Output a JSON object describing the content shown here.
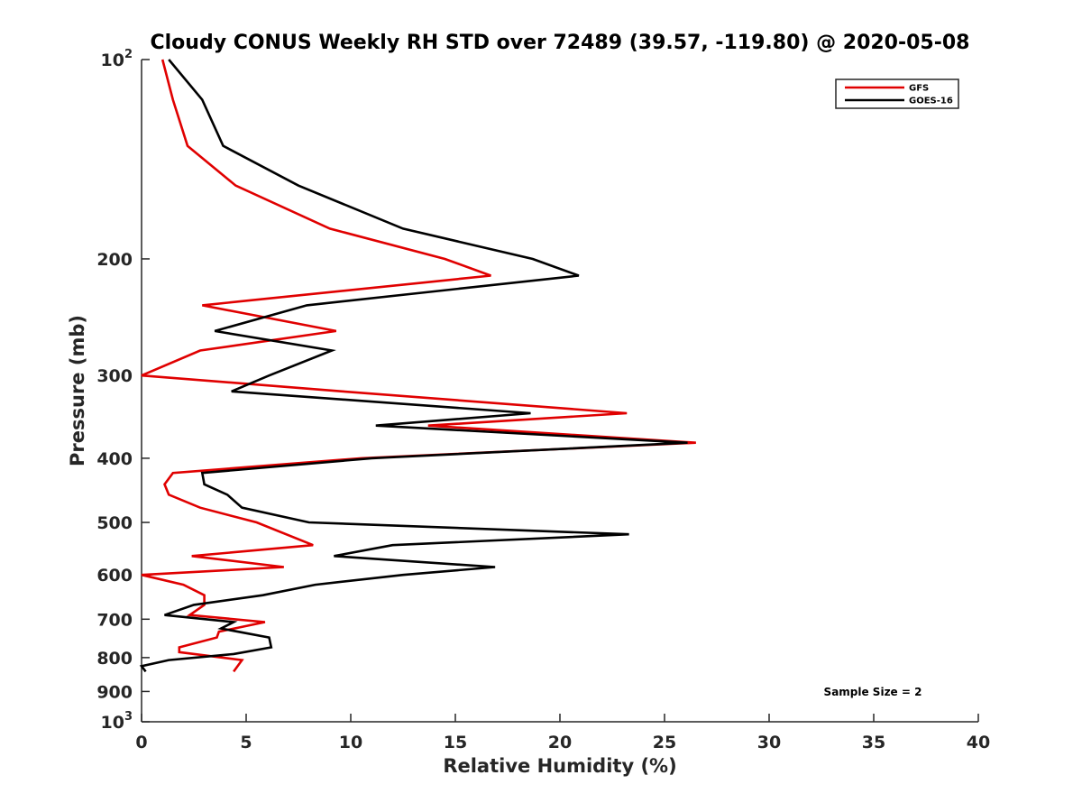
{
  "chart_data": {
    "type": "line",
    "title": "Cloudy CONUS Weekly RH STD over 72489 (39.57, -119.80) @ 2020-05-08",
    "xlabel": "Relative Humidity (%)",
    "ylabel": "Pressure (mb)",
    "xlim": [
      0,
      40
    ],
    "ylim": [
      1000,
      100
    ],
    "yscale": "log",
    "y_reversed": true,
    "x_ticks": [
      "0",
      "5",
      "10",
      "15",
      "20",
      "25",
      "30",
      "35",
      "40"
    ],
    "y_ticks": [
      {
        "value": 100,
        "base": "10",
        "exp": "2"
      },
      {
        "value": 200,
        "label": "200"
      },
      {
        "value": 300,
        "label": "300"
      },
      {
        "value": 400,
        "label": "400"
      },
      {
        "value": 500,
        "label": "500"
      },
      {
        "value": 600,
        "label": "600"
      },
      {
        "value": 700,
        "label": "700"
      },
      {
        "value": 800,
        "label": "800"
      },
      {
        "value": 900,
        "label": "900"
      },
      {
        "value": 1000,
        "base": "10",
        "exp": "3"
      }
    ],
    "legend_position": "top-right",
    "grid": false,
    "annotation": "Sample Size = 2",
    "series": [
      {
        "name": "GFS",
        "color": "#e00000",
        "points": [
          [
            1.0,
            100
          ],
          [
            1.5,
            115
          ],
          [
            2.2,
            135
          ],
          [
            4.5,
            155
          ],
          [
            9.0,
            180
          ],
          [
            14.5,
            200
          ],
          [
            16.7,
            212
          ],
          [
            2.9,
            235
          ],
          [
            9.3,
            257
          ],
          [
            2.8,
            275
          ],
          [
            0,
            300
          ],
          [
            9.6,
            317
          ],
          [
            23.2,
            342
          ],
          [
            13.7,
            357
          ],
          [
            26.5,
            379
          ],
          [
            10.5,
            400
          ],
          [
            1.5,
            421
          ],
          [
            1.1,
            438
          ],
          [
            1.3,
            454
          ],
          [
            2.8,
            475
          ],
          [
            5.5,
            500
          ],
          [
            8.2,
            541
          ],
          [
            2.4,
            562
          ],
          [
            6.8,
            584
          ],
          [
            0,
            600
          ],
          [
            2.0,
            621
          ],
          [
            3.0,
            644
          ],
          [
            3.0,
            666
          ],
          [
            2.3,
            690
          ],
          [
            5.9,
            707
          ],
          [
            3.7,
            731
          ],
          [
            3.6,
            746
          ],
          [
            1.8,
            772
          ],
          [
            1.8,
            785
          ],
          [
            4.8,
            807
          ],
          [
            4.4,
            840
          ]
        ]
      },
      {
        "name": "GOES-16",
        "color": "#000000",
        "points": [
          [
            1.3,
            100
          ],
          [
            2.9,
            115
          ],
          [
            3.9,
            135
          ],
          [
            7.5,
            155
          ],
          [
            12.5,
            180
          ],
          [
            18.7,
            200
          ],
          [
            20.9,
            212
          ],
          [
            7.9,
            235
          ],
          [
            3.5,
            257
          ],
          [
            9.1,
            275
          ],
          [
            6.1,
            300
          ],
          [
            4.3,
            317
          ],
          [
            18.6,
            342
          ],
          [
            11.2,
            357
          ],
          [
            26.1,
            379
          ],
          [
            11.0,
            400
          ],
          [
            2.9,
            421
          ],
          [
            3.0,
            438
          ],
          [
            4.1,
            454
          ],
          [
            4.8,
            475
          ],
          [
            8.0,
            500
          ],
          [
            23.3,
            521
          ],
          [
            12.0,
            541
          ],
          [
            9.2,
            562
          ],
          [
            16.9,
            584
          ],
          [
            12.5,
            600
          ],
          [
            8.3,
            621
          ],
          [
            5.8,
            644
          ],
          [
            2.5,
            666
          ],
          [
            1.1,
            690
          ],
          [
            4.4,
            707
          ],
          [
            3.8,
            723
          ],
          [
            6.1,
            746
          ],
          [
            6.2,
            772
          ],
          [
            4.4,
            790
          ],
          [
            1.3,
            807
          ],
          [
            0,
            824
          ],
          [
            0.2,
            840
          ]
        ]
      }
    ]
  }
}
